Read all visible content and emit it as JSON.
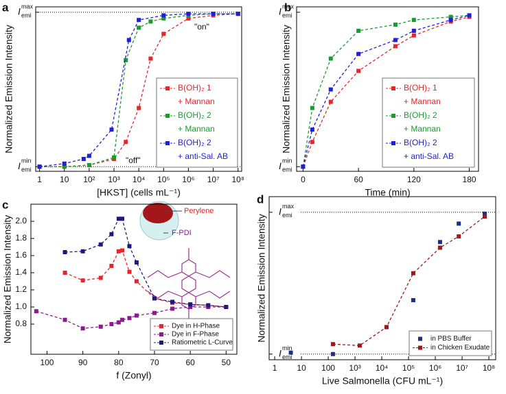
{
  "chart_data": [
    {
      "type": "line",
      "label": "a",
      "x_label": "[HKST] (cells mL⁻¹)",
      "y_label": "Normalized Emission Intensity",
      "xlog": true,
      "xlim": [
        0.7,
        140000000
      ],
      "ylim": [
        -0.03,
        1.035
      ],
      "xticks": [
        1,
        10,
        {
          "value": 100,
          "label": "10²"
        },
        {
          "value": 1000,
          "label": "10³"
        },
        {
          "value": 10000,
          "label": "10⁴"
        },
        {
          "value": 100000,
          "label": "10⁵"
        },
        {
          "value": 1000000,
          "label": "10⁶"
        },
        {
          "value": 10000000,
          "label": "10⁷"
        },
        {
          "value": 100000000,
          "label": "10⁸"
        }
      ],
      "yticks": [
        {
          "value": 0,
          "label": "I",
          "sub": "emi",
          "sup": "min"
        },
        {
          "value": 1,
          "label": "I",
          "sub": "emi",
          "sup": "max"
        }
      ],
      "ref_lines": true,
      "legend": "lower right",
      "legend_text_colored": true,
      "annotations": [
        "\"on\"",
        "\"off\""
      ],
      "series": [
        {
          "name": "B(OH)₂ 1",
          "name_line2": "+ Mannan",
          "color": "#e8262a",
          "x": [
            1,
            10,
            100,
            1000,
            3000,
            10000,
            30000,
            100000,
            1000000,
            10000000,
            100000000
          ],
          "values": [
            0,
            0,
            0.01,
            0.05,
            0.16,
            0.38,
            0.7,
            0.86,
            0.96,
            0.98,
            0.99
          ]
        },
        {
          "name": "B(OH)₂ 2",
          "name_line2": "+ Mannan",
          "color": "#1a9b2e",
          "x": [
            1,
            10,
            100,
            1000,
            3000,
            10000,
            30000,
            100000,
            1000000,
            10000000,
            100000000
          ],
          "values": [
            0,
            0,
            0.01,
            0.06,
            0.69,
            0.9,
            0.94,
            0.96,
            0.98,
            0.99,
            0.99
          ]
        },
        {
          "name": "B(OH)₂ 2",
          "name_line2": "+ anti-Sal. AB",
          "color": "#1f1fd6",
          "x": [
            1,
            10,
            60,
            100,
            800,
            4000,
            10000,
            100000,
            1000000,
            10000000,
            100000000
          ],
          "values": [
            0,
            0.02,
            0.05,
            0.07,
            0.24,
            0.82,
            0.95,
            0.98,
            0.99,
            0.99,
            0.99
          ]
        }
      ]
    },
    {
      "type": "line",
      "label": "b",
      "x_label": "Time (min)",
      "y_label": "Normalized Emission Intensity",
      "xlim": [
        -7,
        190
      ],
      "ylim": [
        -0.03,
        1.035
      ],
      "xticks": [
        0,
        60,
        120,
        180
      ],
      "yticks": [
        {
          "value": 0,
          "label": "I",
          "sub": "emi",
          "sup": "min"
        },
        {
          "value": 1,
          "label": "I",
          "sub": "emi",
          "sup": "max"
        }
      ],
      "legend": "lower right",
      "legend_text_colored": true,
      "x": [
        0,
        10,
        30,
        60,
        100,
        120,
        160,
        180
      ],
      "series": [
        {
          "name": "B(OH)₂ 1",
          "name_line2": "+ Mannan",
          "color": "#e8262a",
          "values": [
            0,
            0.16,
            0.42,
            0.62,
            0.78,
            0.85,
            0.94,
            0.97
          ]
        },
        {
          "name": "B(OH)₂ 2",
          "name_line2": "+ Mannan",
          "color": "#1a9b2e",
          "values": [
            0,
            0.38,
            0.7,
            0.88,
            0.92,
            0.95,
            0.97,
            0.98
          ]
        },
        {
          "name": "B(OH)₂ 2",
          "name_line2": "+ anti-Sal. AB",
          "color": "#1f1fd6",
          "values": [
            0,
            0.24,
            0.5,
            0.73,
            0.82,
            0.88,
            0.95,
            0.98
          ]
        }
      ]
    },
    {
      "type": "line",
      "label": "c",
      "x_label": "f (Zonyl)",
      "y_label": "Normalized Emission Intensity",
      "xlim": [
        104.5,
        47
      ],
      "ylim": [
        0.448,
        2.2
      ],
      "xticks": [
        100,
        90,
        80,
        70,
        60,
        50
      ],
      "yticks": [
        0.8,
        {
          "value": 1,
          "label": "1.0"
        },
        1.2,
        1.4,
        1.6,
        1.8,
        {
          "value": 2,
          "label": "2.0"
        }
      ],
      "legend": "lower right",
      "inset_labels": [
        "Perylene",
        "F-PDI"
      ],
      "series": [
        {
          "name": "Dye in H-Phase",
          "color": "#e8262a",
          "x": [
            95,
            90,
            85,
            82,
            80,
            79,
            77,
            75,
            70,
            65,
            60,
            55,
            50
          ],
          "values": [
            1.4,
            1.31,
            1.34,
            1.48,
            1.65,
            1.66,
            1.41,
            1.3,
            1.1,
            1.05,
            1.03,
            1.02,
            1
          ]
        },
        {
          "name": "Dye in F-Phase",
          "color": "#8b1a8b",
          "x": [
            103,
            95,
            90,
            85,
            82,
            80,
            79,
            77,
            75,
            70,
            65,
            60,
            55,
            50
          ],
          "values": [
            0.95,
            0.85,
            0.75,
            0.77,
            0.8,
            0.82,
            0.85,
            0.87,
            0.9,
            0.93,
            0.98,
            1,
            1,
            1
          ]
        },
        {
          "name": "Ratiometric L-Curve",
          "color": "#1a1a80",
          "x": [
            95,
            90,
            85,
            82,
            80,
            79,
            77,
            75,
            70,
            65,
            60,
            55,
            50
          ],
          "values": [
            1.64,
            1.65,
            1.73,
            1.85,
            2.03,
            2.03,
            1.71,
            1.52,
            1.1,
            1.06,
            1.03,
            1.02,
            1
          ]
        }
      ]
    },
    {
      "type": "line",
      "label": "d",
      "x_label": "Live Salmonella (CFU mL⁻¹)",
      "y_label": "Normalized Emission Intensity",
      "xlog": true,
      "xlim": [
        0.62,
        180000000
      ],
      "ylim": [
        -0.04,
        1.11
      ],
      "xticks": [
        1,
        10,
        100,
        {
          "value": 1000,
          "label": "10³"
        },
        {
          "value": 10000,
          "label": "10⁴"
        },
        {
          "value": 100000,
          "label": "10⁵"
        },
        {
          "value": 1000000,
          "label": "10⁶"
        },
        {
          "value": 10000000,
          "label": "10⁷"
        },
        {
          "value": 100000000,
          "label": "10⁸"
        }
      ],
      "yticks": [
        {
          "value": 0,
          "label": "I",
          "sub": "emi",
          "sup": "min"
        },
        {
          "value": 1,
          "label": "I",
          "sub": "emi",
          "sup": "max"
        }
      ],
      "ref_lines": true,
      "legend": "lower right",
      "series": [
        {
          "name": "in PBS Buffer",
          "color": "#1f2a8a",
          "no_line": true,
          "x": [
            4,
            150,
            15000,
            150000,
            1500000,
            7500000,
            70000000
          ],
          "values": [
            0.01,
            0,
            0.19,
            0.38,
            0.79,
            0.92,
            0.99
          ]
        },
        {
          "name": "in Chicken Exudate",
          "color": "#9b1b1b",
          "x": [
            150,
            1500,
            15000,
            150000,
            1500000,
            7500000,
            70000000
          ],
          "values": [
            0.07,
            0.06,
            0.19,
            0.57,
            0.75,
            0.83,
            0.97
          ]
        }
      ]
    }
  ]
}
